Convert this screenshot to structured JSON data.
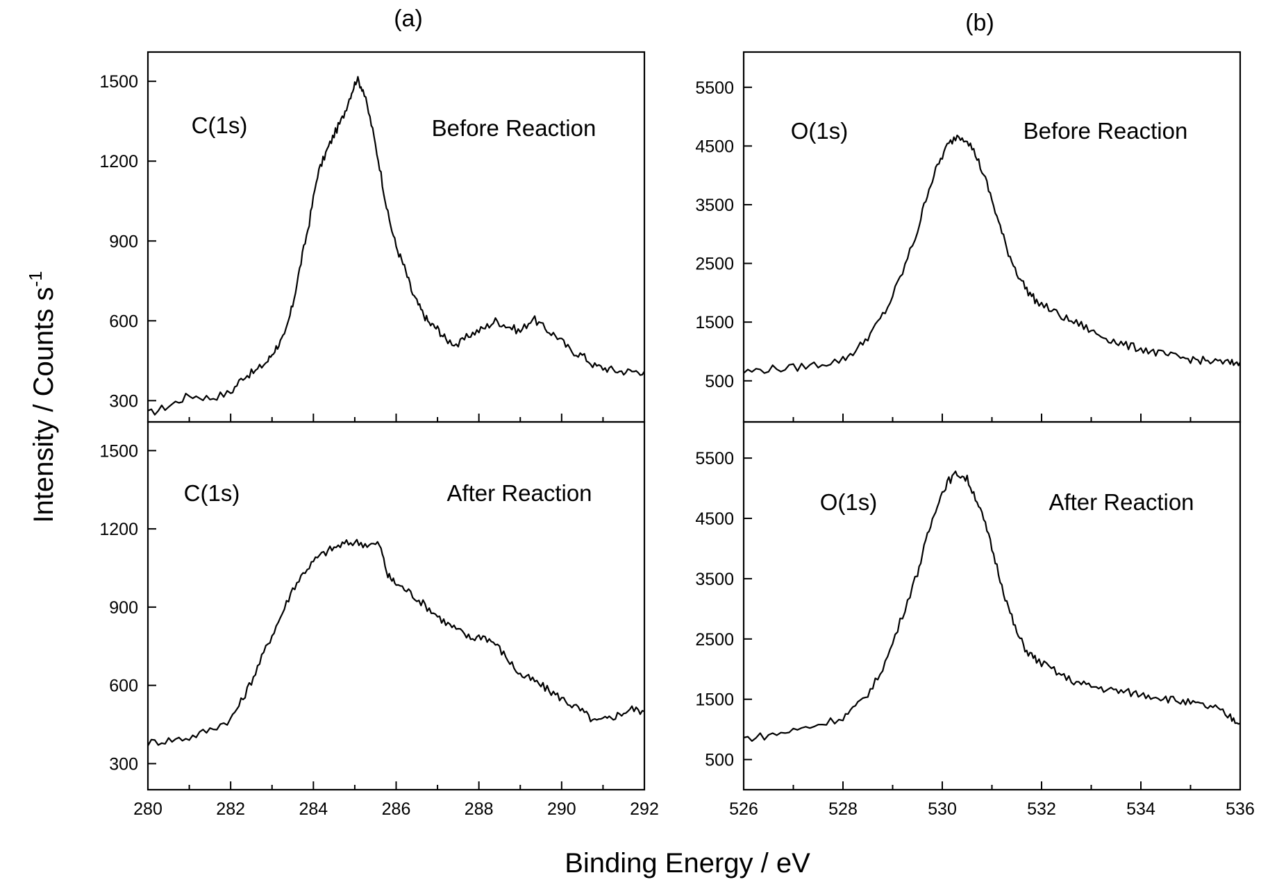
{
  "figure": {
    "x_label": "Binding Energy / eV",
    "y_label": "Intensity / Counts s",
    "y_label_superscript": "-1"
  },
  "chart_data": [
    {
      "type": "line",
      "panel": "(a)",
      "position": "top",
      "annotation_peak": "C(1s)",
      "annotation_condition": "Before Reaction",
      "xlim": [
        280,
        292
      ],
      "ylim": [
        220,
        1610
      ],
      "y_ticks": [
        300,
        600,
        900,
        1200,
        1500
      ],
      "x_ticks": [
        280,
        282,
        284,
        286,
        288,
        290,
        292
      ],
      "series": [
        {
          "x": [
            280.0,
            280.5,
            281.0,
            281.5,
            282.0,
            282.3,
            282.6,
            282.9,
            283.1,
            283.3,
            283.5,
            283.7,
            283.9,
            284.1,
            284.3,
            284.5,
            284.7,
            284.9,
            285.05,
            285.2,
            285.4,
            285.6,
            285.8,
            286.0,
            286.2,
            286.4,
            286.6,
            286.8,
            287.0,
            287.2,
            287.5,
            287.8,
            288.1,
            288.4,
            288.7,
            289.0,
            289.3,
            289.6,
            289.9,
            290.2,
            290.5,
            290.8,
            291.1,
            291.4,
            291.7,
            292.0
          ],
          "y": [
            250,
            280,
            320,
            310,
            330,
            390,
            410,
            450,
            500,
            540,
            660,
            820,
            970,
            1150,
            1230,
            1300,
            1360,
            1450,
            1510,
            1470,
            1340,
            1180,
            1000,
            880,
            800,
            700,
            640,
            590,
            570,
            530,
            510,
            550,
            570,
            600,
            580,
            560,
            610,
            570,
            540,
            490,
            470,
            430,
            420,
            410,
            410,
            410
          ]
        }
      ]
    },
    {
      "type": "line",
      "panel": "(a)",
      "position": "bottom",
      "annotation_peak": "C(1s)",
      "annotation_condition": "After Reaction",
      "xlim": [
        280,
        292
      ],
      "ylim": [
        200,
        1610
      ],
      "y_ticks": [
        300,
        600,
        900,
        1200,
        1500
      ],
      "x_ticks": [
        280,
        282,
        284,
        286,
        288,
        290,
        292
      ],
      "series": [
        {
          "x": [
            280.0,
            280.5,
            281.0,
            281.5,
            282.0,
            282.3,
            282.6,
            282.9,
            283.2,
            283.5,
            283.8,
            284.1,
            284.4,
            284.7,
            285.0,
            285.3,
            285.6,
            285.8,
            286.0,
            286.3,
            286.6,
            286.9,
            287.2,
            287.5,
            287.8,
            288.1,
            288.4,
            288.7,
            289.0,
            289.3,
            289.6,
            289.9,
            290.2,
            290.5,
            290.8,
            291.1,
            291.4,
            291.7,
            292.0
          ],
          "y": [
            380,
            390,
            400,
            430,
            470,
            550,
            650,
            760,
            860,
            970,
            1040,
            1090,
            1120,
            1140,
            1150,
            1140,
            1140,
            1020,
            990,
            960,
            920,
            880,
            840,
            810,
            780,
            790,
            760,
            700,
            640,
            620,
            590,
            560,
            530,
            500,
            460,
            470,
            490,
            510,
            500
          ]
        }
      ]
    },
    {
      "type": "line",
      "panel": "(b)",
      "position": "top",
      "annotation_peak": "O(1s)",
      "annotation_condition": "Before Reaction",
      "xlim": [
        526,
        536
      ],
      "ylim": [
        -200,
        6100
      ],
      "y_ticks": [
        500,
        1500,
        2500,
        3500,
        4500,
        5500
      ],
      "x_ticks": [
        526,
        528,
        530,
        532,
        534,
        536
      ],
      "series": [
        {
          "x": [
            526.0,
            526.5,
            527.0,
            527.5,
            528.0,
            528.3,
            528.6,
            528.9,
            529.2,
            529.5,
            529.7,
            529.9,
            530.1,
            530.3,
            530.5,
            530.7,
            530.9,
            531.1,
            531.3,
            531.5,
            531.7,
            531.9,
            532.2,
            532.5,
            532.8,
            533.1,
            533.4,
            533.7,
            534.0,
            534.3,
            534.6,
            534.9,
            535.2,
            535.5,
            535.8,
            536.0
          ],
          "y": [
            650,
            700,
            720,
            780,
            860,
            1050,
            1350,
            1750,
            2350,
            3050,
            3700,
            4150,
            4500,
            4680,
            4620,
            4300,
            3850,
            3300,
            2750,
            2350,
            2050,
            1850,
            1700,
            1550,
            1450,
            1300,
            1200,
            1100,
            1050,
            980,
            920,
            880,
            850,
            820,
            800,
            820
          ]
        }
      ]
    },
    {
      "type": "line",
      "panel": "(b)",
      "position": "bottom",
      "annotation_peak": "O(1s)",
      "annotation_condition": "After Reaction",
      "xlim": [
        526,
        536
      ],
      "ylim": [
        0,
        6100
      ],
      "y_ticks": [
        500,
        1500,
        2500,
        3500,
        4500,
        5500
      ],
      "x_ticks": [
        526,
        528,
        530,
        532,
        534,
        536
      ],
      "series": [
        {
          "x": [
            526.0,
            526.5,
            527.0,
            527.5,
            528.0,
            528.3,
            528.6,
            528.9,
            529.2,
            529.5,
            529.7,
            529.9,
            530.1,
            530.3,
            530.5,
            530.7,
            530.9,
            531.1,
            531.3,
            531.5,
            531.7,
            531.9,
            532.2,
            532.5,
            532.8,
            533.1,
            533.4,
            533.7,
            534.0,
            534.3,
            534.6,
            534.9,
            535.2,
            535.5,
            535.8,
            536.0
          ],
          "y": [
            850,
            900,
            980,
            1080,
            1200,
            1400,
            1700,
            2200,
            2900,
            3600,
            4200,
            4750,
            5100,
            5250,
            5150,
            4800,
            4300,
            3700,
            3100,
            2600,
            2300,
            2150,
            2000,
            1850,
            1750,
            1700,
            1650,
            1620,
            1580,
            1550,
            1500,
            1450,
            1400,
            1350,
            1200,
            1100
          ]
        }
      ]
    }
  ]
}
